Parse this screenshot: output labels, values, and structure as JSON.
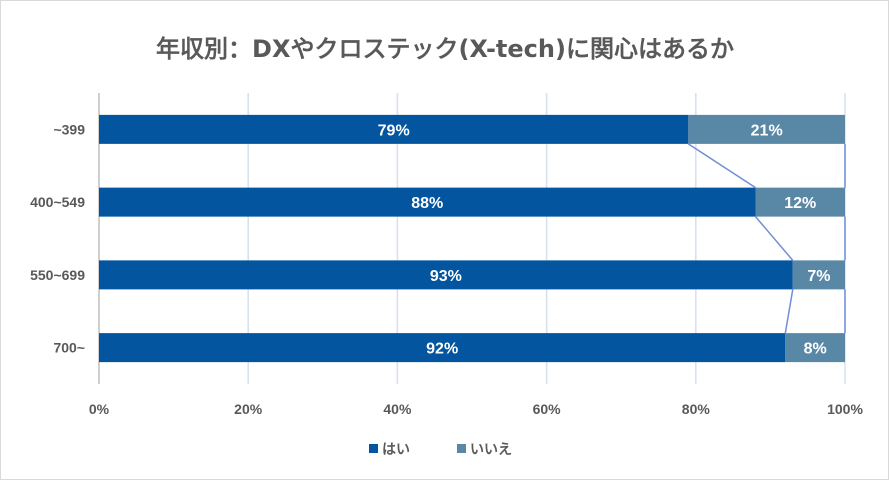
{
  "chart_data": {
    "type": "bar",
    "orientation": "horizontal",
    "stacked": "100%",
    "title": "年収別：DXやクロステック(X-tech)に関心はあるか",
    "categories": [
      "~399",
      "400~549",
      "550~699",
      "700~"
    ],
    "series": [
      {
        "name": "はい",
        "values": [
          79,
          88,
          93,
          92
        ],
        "labels": [
          "79%",
          "88%",
          "93%",
          "92%"
        ],
        "color": "#02559e"
      },
      {
        "name": "いいえ",
        "values": [
          21,
          12,
          7,
          8
        ],
        "labels": [
          "21%",
          "12%",
          "7%",
          "8%"
        ],
        "color": "#5987a6"
      }
    ],
    "xlim": [
      0,
      100
    ],
    "xticks": [
      "0%",
      "20%",
      "40%",
      "60%",
      "80%",
      "100%"
    ],
    "grid": true,
    "series_lines": true,
    "series_line_color": "#6f8fd6",
    "legend": "bottom"
  }
}
